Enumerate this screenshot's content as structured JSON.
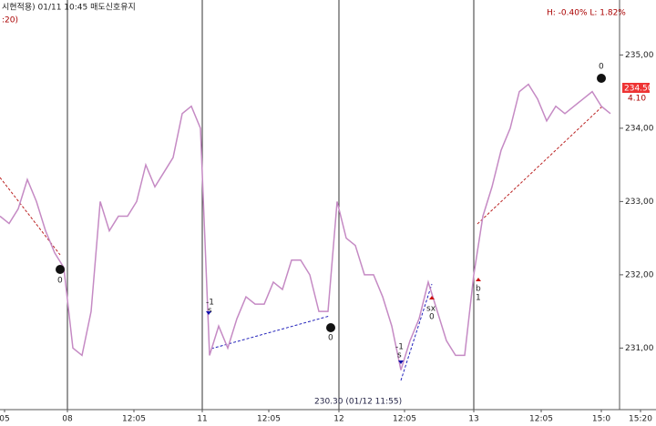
{
  "chart_data": {
    "type": "line",
    "title": "시현적용) 01/11 10:45 매도신호유지",
    "subtitle": ":20)",
    "stats": "H: -0.40%  L: 1.82%",
    "price_label": "234.50",
    "change_label": "4.10",
    "low_annotation": "230.30 (01/12 11:55)",
    "signals": [
      "0",
      "-1",
      "s",
      "0",
      "-1",
      "s",
      "sx",
      "0",
      "b",
      "1",
      "0"
    ],
    "color": "#c58ac4",
    "x": [
      0,
      1,
      2,
      3,
      4,
      5,
      6,
      7,
      8,
      9,
      10,
      11,
      12,
      13,
      14,
      15,
      16,
      17,
      18,
      19,
      20,
      21,
      22,
      23,
      24,
      25,
      26,
      27,
      28,
      29,
      30,
      31,
      32,
      33,
      34,
      35,
      36,
      37,
      38,
      39,
      40,
      41,
      42,
      43,
      44,
      45,
      46,
      47,
      48,
      49,
      50,
      51,
      52,
      53,
      54,
      55,
      56,
      57,
      58,
      59,
      60,
      61,
      62,
      63,
      64,
      65,
      66,
      67
    ],
    "values": [
      232.8,
      232.7,
      232.9,
      233.3,
      233.0,
      232.6,
      232.3,
      232.1,
      231.0,
      230.9,
      231.5,
      233.0,
      232.6,
      232.8,
      232.8,
      233.0,
      233.5,
      233.2,
      233.4,
      233.6,
      234.2,
      234.3,
      234.0,
      230.9,
      231.3,
      231.0,
      231.4,
      231.7,
      231.6,
      231.6,
      231.9,
      231.8,
      232.2,
      232.2,
      232.0,
      231.5,
      231.5,
      233.0,
      232.5,
      232.4,
      232.0,
      232.0,
      231.7,
      231.3,
      230.7,
      231.1,
      231.4,
      231.9,
      231.5,
      231.1,
      230.9,
      230.9,
      232.0,
      232.8,
      233.2,
      233.7,
      234.0,
      234.5,
      234.6,
      234.4,
      234.1,
      234.3,
      234.2,
      234.3,
      234.4,
      234.5,
      234.3,
      234.2
    ],
    "xlim": [
      0,
      68
    ],
    "xticks": [
      {
        "value": 0.5,
        "label": "05"
      },
      {
        "value": 7.4,
        "label": "08"
      },
      {
        "value": 14.7,
        "label": "12:05"
      },
      {
        "value": 22.2,
        "label": "11"
      },
      {
        "value": 29.5,
        "label": "12:05"
      },
      {
        "value": 37.2,
        "label": "12"
      },
      {
        "value": 44.4,
        "label": "12:05"
      },
      {
        "value": 52,
        "label": "13"
      },
      {
        "value": 59.4,
        "label": "12:05"
      },
      {
        "value": 66,
        "label": "15:0"
      },
      {
        "value": 70.3,
        "label": "15:20"
      }
    ],
    "ylim": [
      230.16,
      235.75
    ],
    "yticks": [
      {
        "value": 231,
        "label": "231,00"
      },
      {
        "value": 232,
        "label": "232,00"
      },
      {
        "value": 233,
        "label": "233,00"
      },
      {
        "value": 234,
        "label": "234,00"
      },
      {
        "value": 235,
        "label": "235,00"
      }
    ],
    "grid": false
  }
}
